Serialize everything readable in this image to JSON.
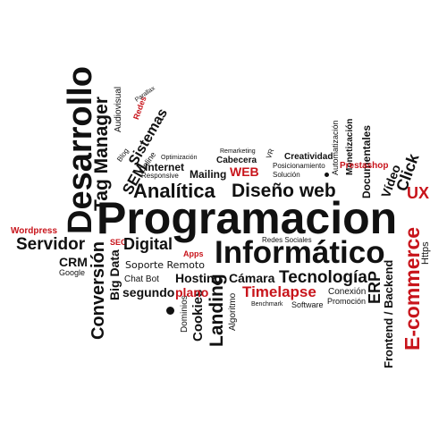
{
  "words": {
    "programacion": "Programacion",
    "desarrollo": "Desarrollo",
    "informatico": "Informático",
    "analitica": "Analítica",
    "diseno_web": "Diseño web",
    "servidor": "Servidor",
    "digital": "Digital",
    "tag_manager": "Tag Manager",
    "conversion": "Conversión",
    "landing": "Landing",
    "tecnologia": "Tecnología",
    "timelapse": "Timelapse",
    "e_commerce": "E-commerce",
    "ux": "UX",
    "web": "WEB",
    "sem": "SEM",
    "sistemas": "Sistemas",
    "internet": "Internet",
    "mailing": "Mailing",
    "cabecera": "Cabecera",
    "remarketing": "Remarketing",
    "creatividad": "Creatividad",
    "posicionamiento": "Posicionamiento",
    "solucion": "Solución",
    "responsive": "Responsive",
    "optimizacion": "Optimización",
    "blog": "Blog",
    "online": "Online",
    "audiovisual": "Audiovisual",
    "redes": "Redes",
    "parallax": "Parallax",
    "automatizacion": "Automatización",
    "prestashop": "Prestashop",
    "monetizacion": "Monetización",
    "documentales": "Documentales",
    "video": "Vídeo",
    "click": "Click",
    "wordpress": "Wordpress",
    "crm": "CRM",
    "google": "Google",
    "seo": "SEO",
    "big_data": "Big Data",
    "apps": "Apps",
    "soporte_remoto": "Soporte Remoto",
    "redes_sociales": "Redes Sociales",
    "chat_bot": "Chat Bot",
    "hosting": "Hosting",
    "segundo": "segundo",
    "plano": "plano",
    "camara": "Cámara",
    "dominios": "Dominios",
    "cookies": "Cookies",
    "algoritmo": "Algoritmo",
    "benchmark": "Benchmark",
    "software": "Software",
    "conexion": "Conexión",
    "promocion": "Promoción",
    "erp": "ERP",
    "frontend_backend": "Frontend / Backend",
    "https": "Https",
    "vr": "VR"
  },
  "colors": {
    "text": "#111111",
    "accent": "#c8141b",
    "background": "#ffffff"
  }
}
